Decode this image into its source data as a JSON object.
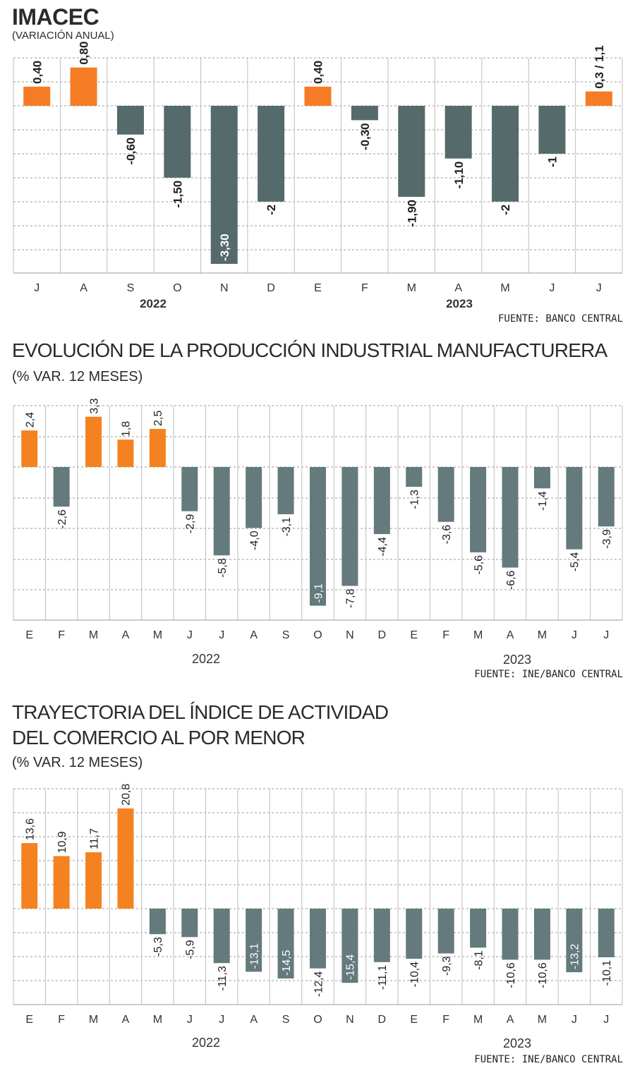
{
  "colors": {
    "positive": "#f58220",
    "positive_imacec": "#f57c24",
    "negative": "#546a6b",
    "negative_light": "#647a7d",
    "grid": "#999999",
    "label_dark": "#1f1f1f"
  },
  "charts": {
    "imacec": {
      "title": "IMACEC",
      "subtitle": "(VARIACIÓN ANUAL)",
      "source": "FUENTE: BANCO CENTRAL",
      "years": [
        "2022",
        "2023"
      ]
    },
    "industrial": {
      "title": "EVOLUCIÓN DE LA PRODUCCIÓN INDUSTRIAL MANUFACTURERA",
      "subtitle": "(% VAR. 12 MESES)",
      "source": "FUENTE: INE/BANCO CENTRAL",
      "years": [
        "2022",
        "2023"
      ]
    },
    "comercio": {
      "title_line1": "TRAYECTORIA DEL ÍNDICE DE ACTIVIDAD",
      "title_line2": "DEL COMERCIO AL POR MENOR",
      "subtitle": "(% VAR. 12 MESES)",
      "source": "FUENTE: INE/BANCO CENTRAL",
      "years": [
        "2022",
        "2023"
      ]
    }
  },
  "chart_data": [
    {
      "type": "bar",
      "title": "IMACEC",
      "subtitle": "(VARIACIÓN ANUAL)",
      "categories": [
        "J",
        "A",
        "S",
        "O",
        "N",
        "D",
        "E",
        "F",
        "M",
        "A",
        "M",
        "J",
        "J"
      ],
      "values": [
        0.4,
        0.8,
        -0.6,
        -1.5,
        -3.3,
        -2,
        0.4,
        -0.3,
        -1.9,
        -1.1,
        -2,
        -1,
        0.3
      ],
      "data_labels": [
        "0,40",
        "0,80",
        "-0,60",
        "-1,50",
        "-3,30",
        "-2",
        "0,40",
        "-0,30",
        "-1,90",
        "-1,10",
        "-2",
        "-1",
        "0,3 / 1,1"
      ],
      "years": [
        "2022",
        "2023"
      ],
      "ylim": [
        -3.5,
        1.0
      ],
      "grid": true
    },
    {
      "type": "bar",
      "title": "EVOLUCIÓN DE LA PRODUCCIÓN INDUSTRIAL MANUFACTURERA",
      "subtitle": "(% VAR. 12 MESES)",
      "categories": [
        "E",
        "F",
        "M",
        "A",
        "M",
        "J",
        "J",
        "A",
        "S",
        "O",
        "N",
        "D",
        "E",
        "F",
        "M",
        "A",
        "M",
        "J",
        "J"
      ],
      "values": [
        2.4,
        -2.6,
        3.3,
        1.8,
        2.5,
        -2.9,
        -5.8,
        -4.0,
        -3.1,
        -9.1,
        -7.8,
        -4.4,
        -1.3,
        -3.6,
        -5.6,
        -6.6,
        -1.4,
        -5.4,
        -3.9
      ],
      "data_labels": [
        "2,4",
        "-2,6",
        "3,3",
        "1,8",
        "2,5",
        "-2,9",
        "-5,8",
        "-4,0",
        "-3,1",
        "-9,1",
        "-7,8",
        "-4,4",
        "-1,3",
        "-3,6",
        "-5,6",
        "-6,6",
        "-1,4",
        "-5,4",
        "-3,9"
      ],
      "years": [
        "2022",
        "2023"
      ],
      "ylim": [
        -10,
        4
      ],
      "grid": true
    },
    {
      "type": "bar",
      "title": "TRAYECTORIA DEL ÍNDICE DE ACTIVIDAD DEL COMERCIO AL POR MENOR",
      "subtitle": "(% VAR. 12 MESES)",
      "categories": [
        "E",
        "F",
        "M",
        "A",
        "M",
        "J",
        "J",
        "A",
        "S",
        "O",
        "N",
        "D",
        "E",
        "F",
        "M",
        "A",
        "M",
        "J",
        "J"
      ],
      "values": [
        13.6,
        10.9,
        11.7,
        20.8,
        -5.3,
        -5.9,
        -11.3,
        -13.1,
        -14.5,
        -12.4,
        -15.4,
        -11.1,
        -10.4,
        -9.3,
        -8.1,
        -10.6,
        -10.6,
        -13.2,
        -10.1
      ],
      "data_labels": [
        "13,6",
        "10,9",
        "11,7",
        "20,8",
        "-5,3",
        "-5,9",
        "-11,3",
        "-13,1",
        "-14,5",
        "-12,4",
        "-15,4",
        "-11,1",
        "-10,4",
        "-9,3",
        "-8,1",
        "-10,6",
        "-10,6",
        "-13,2",
        "-10,1"
      ],
      "years": [
        "2022",
        "2023"
      ],
      "ylim": [
        -20,
        25
      ],
      "grid": true
    }
  ]
}
